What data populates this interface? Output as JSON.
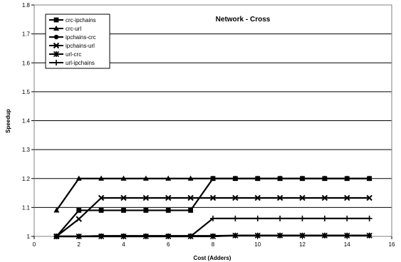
{
  "chart_data": {
    "type": "line",
    "title": "Network - Cross",
    "xlabel": "Cost (Adders)",
    "ylabel": "Speedup",
    "xlim": [
      0,
      16
    ],
    "ylim": [
      1,
      1.8
    ],
    "xticks": [
      0,
      2,
      4,
      6,
      8,
      10,
      12,
      14,
      16
    ],
    "yticks": [
      1,
      1.1,
      1.2,
      1.3,
      1.4,
      1.5,
      1.6,
      1.7,
      1.8
    ],
    "grid": "horizontal",
    "legend_position": "top-left",
    "x": [
      1,
      2,
      3,
      4,
      5,
      6,
      7,
      8,
      9,
      10,
      11,
      12,
      13,
      14,
      15
    ],
    "series": [
      {
        "name": "crc-ipchains",
        "marker": "square",
        "values": [
          1.0,
          1.09,
          1.09,
          1.09,
          1.09,
          1.09,
          1.09,
          1.2,
          1.2,
          1.2,
          1.2,
          1.2,
          1.2,
          1.2,
          1.2
        ]
      },
      {
        "name": "crc-url",
        "marker": "triangle",
        "values": [
          1.09,
          1.2,
          1.2,
          1.2,
          1.2,
          1.2,
          1.2,
          1.2,
          1.2,
          1.2,
          1.2,
          1.2,
          1.2,
          1.2,
          1.2
        ]
      },
      {
        "name": "ipchains-crc",
        "marker": "circle",
        "values": [
          1.0,
          1.0,
          1.002,
          1.002,
          1.002,
          1.002,
          1.002,
          1.002,
          1.003,
          1.003,
          1.003,
          1.003,
          1.003,
          1.003,
          1.003
        ]
      },
      {
        "name": "ipchains-url",
        "marker": "x",
        "values": [
          1.0,
          1.06,
          1.133,
          1.133,
          1.133,
          1.133,
          1.133,
          1.133,
          1.133,
          1.133,
          1.133,
          1.133,
          1.133,
          1.133,
          1.133
        ]
      },
      {
        "name": "url-crc",
        "marker": "asterisk",
        "values": [
          1.0,
          1.0,
          1.0,
          1.0,
          1.0,
          1.0,
          1.0,
          1.0,
          1.003,
          1.003,
          1.003,
          1.003,
          1.003,
          1.003,
          1.003
        ]
      },
      {
        "name": "url-ipchains",
        "marker": "plus",
        "values": [
          1.0,
          1.0,
          1.0,
          1.0,
          1.0,
          1.0,
          1.0,
          1.062,
          1.062,
          1.062,
          1.062,
          1.062,
          1.062,
          1.062,
          1.062
        ]
      }
    ],
    "colors": {
      "line": "#000000",
      "grid": "#000000",
      "background": "#ffffff"
    }
  }
}
